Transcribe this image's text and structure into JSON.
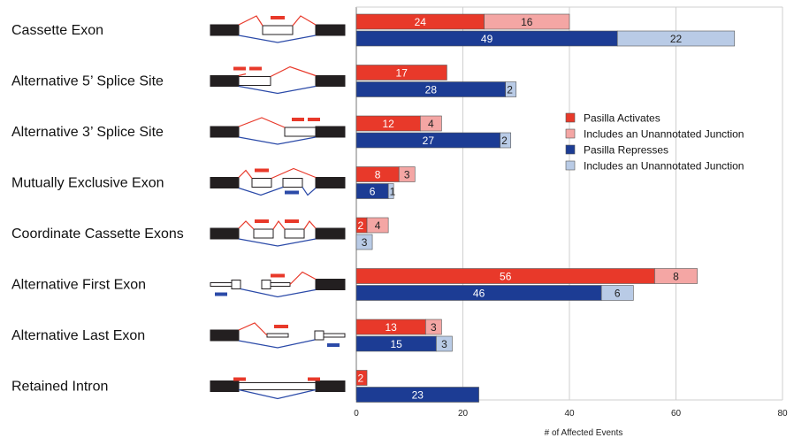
{
  "chart_data": {
    "type": "bar",
    "orientation": "horizontal",
    "stacked": true,
    "categories": [
      "Cassette Exon",
      "Alternative 5’ Splice Site",
      "Alternative 3’ Splice Site",
      "Mutually Exclusive Exon",
      "Coordinate Cassette Exons",
      "Alternative First Exon",
      "Alternative Last Exon",
      "Retained Intron"
    ],
    "series": [
      {
        "name": "Pasilla Activates",
        "group": "activates",
        "color": "#e8392a",
        "values": [
          24,
          17,
          12,
          8,
          2,
          56,
          13,
          2
        ]
      },
      {
        "name": "Includes an Unannotated Junction",
        "group": "activates",
        "color": "#f4a6a4",
        "values": [
          16,
          0,
          4,
          3,
          4,
          8,
          3,
          0
        ]
      },
      {
        "name": "Pasilla Represses",
        "group": "represses",
        "color": "#1c3c94",
        "values": [
          49,
          28,
          27,
          6,
          0,
          46,
          15,
          23
        ]
      },
      {
        "name": "Includes an Unannotated Junction",
        "group": "represses",
        "color": "#b9cbe6",
        "values": [
          22,
          2,
          2,
          1,
          3,
          6,
          3,
          0
        ]
      }
    ],
    "xlabel": "# of Affected Events",
    "xlim": [
      0,
      80
    ],
    "xticks": [
      0,
      20,
      40,
      60,
      80
    ],
    "grid": "vertical",
    "legend": "right",
    "diagram_colors": {
      "exon": "#231f20",
      "inclusion": "#e8392a",
      "exclusion": "#2b4aa8",
      "marker_red": "#e8392a",
      "marker_blue": "#2b4aa8"
    }
  }
}
